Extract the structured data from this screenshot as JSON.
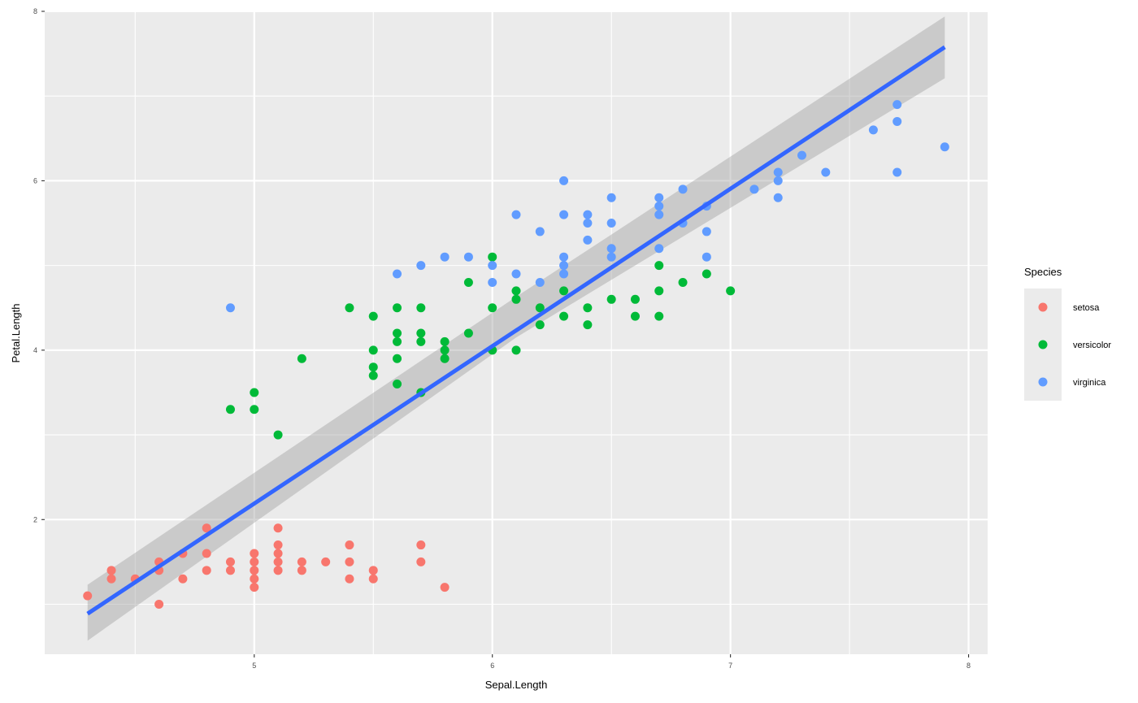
{
  "chart_data": {
    "type": "scatter",
    "xlabel": "Sepal.Length",
    "ylabel": "Petal.Length",
    "xlim": [
      4.12,
      8.08
    ],
    "ylim": [
      0.41,
      7.99
    ],
    "x_ticks": [
      5,
      6,
      7,
      8
    ],
    "y_ticks": [
      2,
      4,
      6,
      8
    ],
    "x_tick_labels": [
      "5",
      "6",
      "7",
      "8"
    ],
    "y_tick_labels": [
      "2",
      "4",
      "6",
      "8"
    ],
    "grid": true,
    "legend": {
      "title": "Species",
      "position": "right",
      "entries": [
        "setosa",
        "versicolor",
        "virginica"
      ]
    },
    "colors": {
      "setosa": "#F8766D",
      "versicolor": "#00BA38",
      "virginica": "#619CFF",
      "fit_line": "#3366FF",
      "confidence_band": "#999999",
      "panel_background": "#EBEBEB",
      "grid": "#FFFFFF"
    },
    "series": [
      {
        "name": "setosa",
        "points": [
          [
            4.3,
            1.1
          ],
          [
            4.4,
            1.4
          ],
          [
            4.4,
            1.3
          ],
          [
            4.5,
            1.3
          ],
          [
            4.6,
            1.5
          ],
          [
            4.6,
            1.4
          ],
          [
            4.6,
            1.0
          ],
          [
            4.7,
            1.6
          ],
          [
            4.7,
            1.3
          ],
          [
            4.8,
            1.9
          ],
          [
            4.8,
            1.6
          ],
          [
            4.8,
            1.4
          ],
          [
            4.9,
            1.5
          ],
          [
            4.9,
            1.4
          ],
          [
            5.0,
            1.6
          ],
          [
            5.0,
            1.5
          ],
          [
            5.0,
            1.4
          ],
          [
            5.0,
            1.3
          ],
          [
            5.0,
            1.2
          ],
          [
            5.1,
            1.9
          ],
          [
            5.1,
            1.7
          ],
          [
            5.1,
            1.6
          ],
          [
            5.1,
            1.5
          ],
          [
            5.1,
            1.4
          ],
          [
            5.2,
            1.5
          ],
          [
            5.2,
            1.4
          ],
          [
            5.3,
            1.5
          ],
          [
            5.4,
            1.7
          ],
          [
            5.4,
            1.5
          ],
          [
            5.4,
            1.3
          ],
          [
            5.5,
            1.4
          ],
          [
            5.5,
            1.3
          ],
          [
            5.7,
            1.7
          ],
          [
            5.7,
            1.5
          ],
          [
            5.8,
            1.2
          ]
        ]
      },
      {
        "name": "versicolor",
        "points": [
          [
            4.9,
            3.3
          ],
          [
            5.0,
            3.5
          ],
          [
            5.0,
            3.3
          ],
          [
            5.1,
            3.0
          ],
          [
            5.2,
            3.9
          ],
          [
            5.4,
            4.5
          ],
          [
            5.5,
            4.4
          ],
          [
            5.5,
            4.0
          ],
          [
            5.5,
            3.8
          ],
          [
            5.5,
            3.7
          ],
          [
            5.6,
            4.5
          ],
          [
            5.6,
            4.2
          ],
          [
            5.6,
            4.1
          ],
          [
            5.6,
            3.9
          ],
          [
            5.6,
            3.6
          ],
          [
            5.7,
            4.5
          ],
          [
            5.7,
            4.2
          ],
          [
            5.7,
            4.1
          ],
          [
            5.7,
            3.5
          ],
          [
            5.8,
            4.1
          ],
          [
            5.8,
            4.0
          ],
          [
            5.8,
            3.9
          ],
          [
            5.9,
            4.8
          ],
          [
            5.9,
            4.2
          ],
          [
            6.0,
            5.1
          ],
          [
            6.0,
            4.5
          ],
          [
            6.0,
            4.0
          ],
          [
            6.1,
            4.7
          ],
          [
            6.1,
            4.6
          ],
          [
            6.1,
            4.0
          ],
          [
            6.2,
            4.5
          ],
          [
            6.2,
            4.3
          ],
          [
            6.3,
            4.7
          ],
          [
            6.3,
            4.4
          ],
          [
            6.4,
            4.5
          ],
          [
            6.4,
            4.3
          ],
          [
            6.5,
            4.6
          ],
          [
            6.6,
            4.6
          ],
          [
            6.6,
            4.4
          ],
          [
            6.7,
            5.0
          ],
          [
            6.7,
            4.7
          ],
          [
            6.7,
            4.4
          ],
          [
            6.8,
            4.8
          ],
          [
            6.9,
            4.9
          ],
          [
            7.0,
            4.7
          ]
        ]
      },
      {
        "name": "virginica",
        "points": [
          [
            4.9,
            4.5
          ],
          [
            5.6,
            4.9
          ],
          [
            5.7,
            5.0
          ],
          [
            5.8,
            5.1
          ],
          [
            5.9,
            5.1
          ],
          [
            6.0,
            5.0
          ],
          [
            6.0,
            4.8
          ],
          [
            6.1,
            5.6
          ],
          [
            6.1,
            4.9
          ],
          [
            6.2,
            5.4
          ],
          [
            6.2,
            4.8
          ],
          [
            6.3,
            6.0
          ],
          [
            6.3,
            5.6
          ],
          [
            6.3,
            5.1
          ],
          [
            6.3,
            5.0
          ],
          [
            6.3,
            4.9
          ],
          [
            6.4,
            5.6
          ],
          [
            6.4,
            5.5
          ],
          [
            6.4,
            5.3
          ],
          [
            6.5,
            5.8
          ],
          [
            6.5,
            5.5
          ],
          [
            6.5,
            5.2
          ],
          [
            6.5,
            5.1
          ],
          [
            6.7,
            5.8
          ],
          [
            6.7,
            5.7
          ],
          [
            6.7,
            5.6
          ],
          [
            6.7,
            5.2
          ],
          [
            6.8,
            5.9
          ],
          [
            6.8,
            5.5
          ],
          [
            6.9,
            5.7
          ],
          [
            6.9,
            5.4
          ],
          [
            6.9,
            5.1
          ],
          [
            7.1,
            5.9
          ],
          [
            7.2,
            6.1
          ],
          [
            7.2,
            6.0
          ],
          [
            7.2,
            5.8
          ],
          [
            7.3,
            6.3
          ],
          [
            7.4,
            6.1
          ],
          [
            7.6,
            6.6
          ],
          [
            7.7,
            6.9
          ],
          [
            7.7,
            6.7
          ],
          [
            7.7,
            6.1
          ],
          [
            7.9,
            6.4
          ]
        ]
      }
    ],
    "fit": {
      "method": "lm",
      "x_range": [
        4.3,
        7.9
      ],
      "intercept": -7.101,
      "slope": 1.858,
      "band_lower": [
        [
          4.3,
          0.57
        ],
        [
          6.1,
          4.15
        ],
        [
          7.9,
          7.21
        ]
      ],
      "band_upper": [
        [
          4.3,
          1.23
        ],
        [
          6.1,
          4.63
        ],
        [
          7.9,
          7.94
        ]
      ]
    }
  }
}
